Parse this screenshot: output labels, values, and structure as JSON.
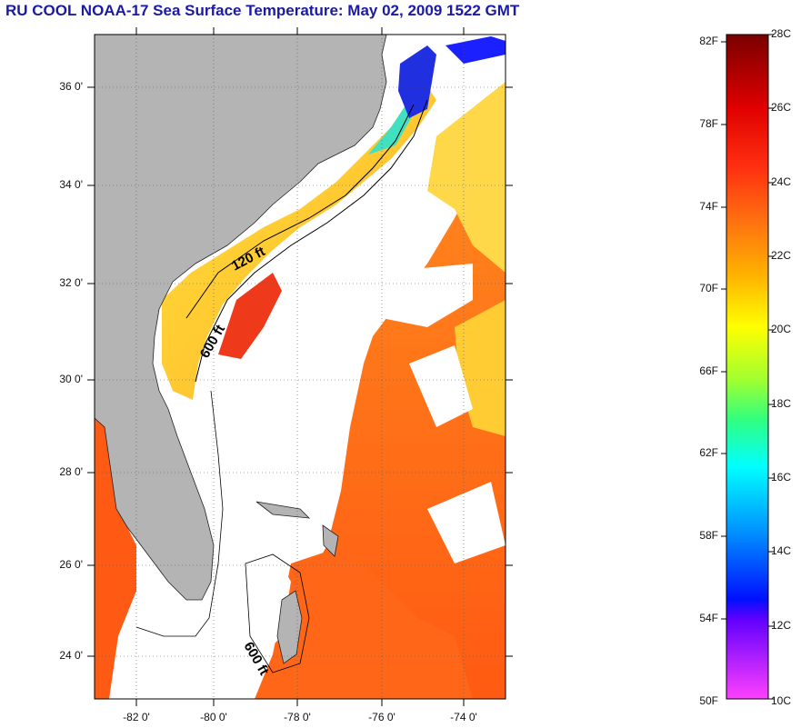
{
  "title": "RU COOL  NOAA-17  Sea Surface Temperature:  May 02, 2009 1522 GMT",
  "map": {
    "lat_labels": [
      "36 0'",
      "34 0'",
      "32 0'",
      "30 0'",
      "28 0'",
      "26 0'",
      "24 0'"
    ],
    "lon_labels": [
      "-82 0'",
      "-80 0'",
      "-78 0'",
      "-76 0'",
      "-74 0'"
    ],
    "contour_labels": [
      "120 ft",
      "600 ft",
      "600 ft"
    ],
    "colors": {
      "land": "#b4b4b4",
      "cloud": "#ffffff",
      "warm": "#ff6a1a",
      "hot": "#ee2a1a",
      "shelf": "#ffd23a"
    }
  },
  "colorbar": {
    "fahrenheit": [
      "82F",
      "78F",
      "74F",
      "70F",
      "66F",
      "62F",
      "58F",
      "54F",
      "50F"
    ],
    "celsius": [
      "28C",
      "26C",
      "24C",
      "22C",
      "20C",
      "18C",
      "16C",
      "14C",
      "12C",
      "10C"
    ]
  }
}
